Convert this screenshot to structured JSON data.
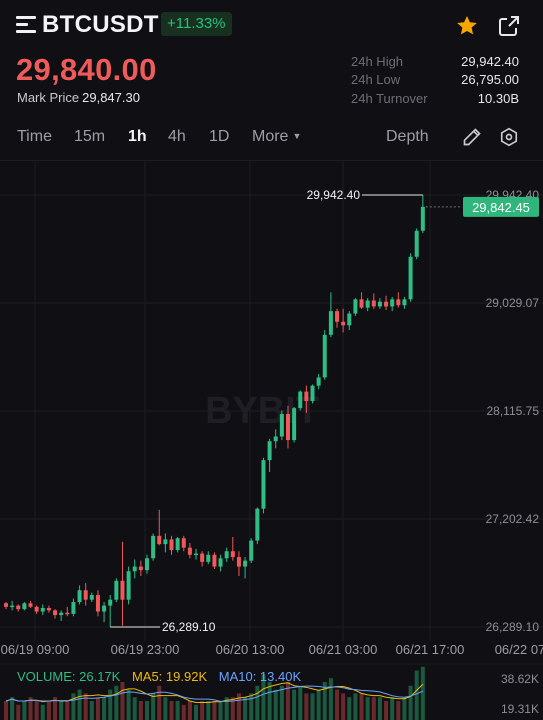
{
  "header": {
    "symbol": "BTCUSDT",
    "change_pct": "+11.33%",
    "last_price": "29,840.00",
    "mark_price_label": "Mark Price",
    "mark_price": "29,847.30",
    "stats": [
      {
        "label": "24h High",
        "value": "29,942.40"
      },
      {
        "label": "24h Low",
        "value": "26,795.00"
      },
      {
        "label": "24h Turnover",
        "value": "10.30B"
      }
    ],
    "icons": {
      "menu": "menu-icon",
      "favorite": "star-icon",
      "share": "share-icon"
    }
  },
  "tabs": {
    "intervals": [
      "Time",
      "15m",
      "1h",
      "4h",
      "1D",
      "More"
    ],
    "active": "1h",
    "depth": "Depth",
    "icons": {
      "draw": "pencil-icon",
      "settings": "settings-icon"
    }
  },
  "colors": {
    "up": "#2ebd85",
    "down": "#f0585a",
    "accent_star": "#f7a600",
    "ma5": "#f0b90b",
    "ma10": "#6aa3ff"
  },
  "watermark": "BYBIT",
  "volume_legend": {
    "volume": "VOLUME: 26.17K",
    "ma5": "MA5: 19.92K",
    "ma10": "MA10: 13.40K"
  },
  "chart_data": {
    "type": "candlestick",
    "y_ticks": [
      "29,942.40",
      "29,029.07",
      "28,115.75",
      "27,202.42",
      "26,289.10"
    ],
    "y_tick_values": [
      29942.4,
      29029.07,
      28115.75,
      27202.42,
      26289.1
    ],
    "x_ticks": [
      "06/19 09:00",
      "06/19 23:00",
      "06/20 13:00",
      "06/21 03:00",
      "06/21 17:00",
      "06/22 07"
    ],
    "current_price_tag": "29,842.45",
    "high_marker": "29,942.40",
    "low_marker": "26,289.10",
    "volume_axis": [
      "38.62K",
      "19.31K"
    ],
    "candles": [
      [
        26490,
        26500,
        26440,
        26460
      ],
      [
        26460,
        26510,
        26430,
        26470
      ],
      [
        26470,
        26480,
        26420,
        26440
      ],
      [
        26440,
        26500,
        26430,
        26490
      ],
      [
        26490,
        26510,
        26450,
        26460
      ],
      [
        26460,
        26470,
        26400,
        26420
      ],
      [
        26420,
        26480,
        26390,
        26450
      ],
      [
        26450,
        26470,
        26410,
        26430
      ],
      [
        26430,
        26440,
        26360,
        26390
      ],
      [
        26390,
        26430,
        26340,
        26410
      ],
      [
        26410,
        26460,
        26380,
        26400
      ],
      [
        26400,
        26530,
        26380,
        26500
      ],
      [
        26500,
        26640,
        26480,
        26600
      ],
      [
        26600,
        26660,
        26470,
        26520
      ],
      [
        26520,
        26580,
        26500,
        26560
      ],
      [
        26560,
        26600,
        26380,
        26420
      ],
      [
        26420,
        26500,
        26330,
        26470
      ],
      [
        26470,
        26560,
        26290,
        26520
      ],
      [
        26520,
        26700,
        26500,
        26680
      ],
      [
        26680,
        27010,
        26300,
        26520
      ],
      [
        26520,
        26800,
        26480,
        26760
      ],
      [
        26760,
        26860,
        26700,
        26800
      ],
      [
        26800,
        26850,
        26720,
        26770
      ],
      [
        26770,
        26900,
        26740,
        26870
      ],
      [
        26870,
        27080,
        26850,
        27060
      ],
      [
        27060,
        27280,
        26980,
        26990
      ],
      [
        26990,
        27080,
        26920,
        27030
      ],
      [
        27030,
        27060,
        26900,
        26940
      ],
      [
        26940,
        27050,
        26920,
        27040
      ],
      [
        27040,
        27060,
        26930,
        26960
      ],
      [
        26960,
        27000,
        26870,
        26900
      ],
      [
        26900,
        26950,
        26860,
        26910
      ],
      [
        26910,
        26930,
        26800,
        26840
      ],
      [
        26840,
        26930,
        26820,
        26900
      ],
      [
        26900,
        26920,
        26780,
        26800
      ],
      [
        26800,
        26900,
        26760,
        26870
      ],
      [
        26870,
        26960,
        26840,
        26930
      ],
      [
        26930,
        27050,
        26850,
        26880
      ],
      [
        26880,
        26930,
        26720,
        26800
      ],
      [
        26800,
        26880,
        26700,
        26850
      ],
      [
        26850,
        27040,
        26830,
        27020
      ],
      [
        27020,
        27300,
        26990,
        27290
      ],
      [
        27290,
        27720,
        27250,
        27700
      ],
      [
        27700,
        27880,
        27600,
        27860
      ],
      [
        27860,
        27960,
        27800,
        27900
      ],
      [
        27900,
        28120,
        27870,
        28090
      ],
      [
        28090,
        28160,
        27800,
        27870
      ],
      [
        27870,
        28150,
        27850,
        28140
      ],
      [
        28140,
        28290,
        28120,
        28280
      ],
      [
        28280,
        28330,
        28100,
        28200
      ],
      [
        28200,
        28340,
        28180,
        28330
      ],
      [
        28330,
        28430,
        28300,
        28400
      ],
      [
        28400,
        28800,
        28380,
        28760
      ],
      [
        28760,
        29120,
        28740,
        28960
      ],
      [
        28960,
        28980,
        28820,
        28870
      ],
      [
        28870,
        28980,
        28780,
        28840
      ],
      [
        28840,
        28960,
        28800,
        28940
      ],
      [
        28940,
        29070,
        28920,
        29060
      ],
      [
        29060,
        29120,
        28980,
        28990
      ],
      [
        28990,
        29070,
        28960,
        29050
      ],
      [
        29050,
        29110,
        28980,
        29000
      ],
      [
        29000,
        29070,
        28980,
        29040
      ],
      [
        29040,
        29090,
        28970,
        29000
      ],
      [
        29000,
        29080,
        28960,
        29060
      ],
      [
        29060,
        29120,
        28990,
        29010
      ],
      [
        29010,
        29080,
        28980,
        29060
      ],
      [
        29060,
        29450,
        29040,
        29420
      ],
      [
        29420,
        29660,
        29400,
        29640
      ],
      [
        29640,
        29942.4,
        29620,
        29842.45
      ]
    ],
    "volumes": [
      0.5,
      0.6,
      0.4,
      0.5,
      0.6,
      0.5,
      0.4,
      0.5,
      0.6,
      0.5,
      0.5,
      0.7,
      0.8,
      0.7,
      0.5,
      0.6,
      0.6,
      0.8,
      0.9,
      1.0,
      0.8,
      0.6,
      0.5,
      0.5,
      0.7,
      0.9,
      0.6,
      0.5,
      0.5,
      0.4,
      0.5,
      0.4,
      0.5,
      0.5,
      0.5,
      0.5,
      0.6,
      0.6,
      0.7,
      0.6,
      0.7,
      0.9,
      1.2,
      1.0,
      0.8,
      0.9,
      1.0,
      0.8,
      0.9,
      0.7,
      0.7,
      0.8,
      1.0,
      1.1,
      0.8,
      0.7,
      0.6,
      0.7,
      0.7,
      0.6,
      0.6,
      0.6,
      0.5,
      0.6,
      0.5,
      0.6,
      0.9,
      1.3,
      1.4
    ]
  }
}
